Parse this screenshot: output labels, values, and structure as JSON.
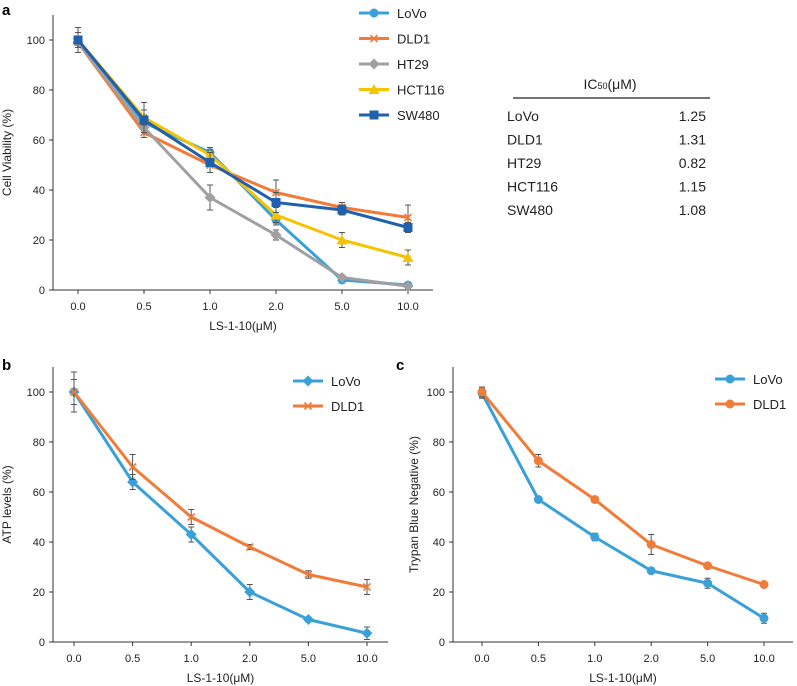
{
  "chart_data": [
    {
      "panel": "a",
      "type": "line",
      "categories": [
        "0.0",
        "0.5",
        "1.0",
        "2.0",
        "5.0",
        "10.0"
      ],
      "xlabel": "LS-1-10(μM)",
      "ylabel": "Cell Viability (%)",
      "ylim": [
        0,
        110
      ],
      "yticks": [
        0,
        20,
        40,
        60,
        80,
        100
      ],
      "grid": false,
      "legend_position": "top-right",
      "series": [
        {
          "name": "LoVo",
          "color": "#3aa0d8",
          "marker": "circle",
          "values": [
            100,
            67,
            55,
            28,
            4,
            2
          ],
          "errors": [
            3,
            3,
            2,
            2,
            1,
            1
          ]
        },
        {
          "name": "DLD1",
          "color": "#f07c3a",
          "marker": "x",
          "values": [
            99,
            63,
            50,
            39,
            33,
            29
          ],
          "errors": [
            2,
            2,
            3,
            5,
            2,
            5
          ]
        },
        {
          "name": "HT29",
          "color": "#a0a0a0",
          "marker": "diamond",
          "values": [
            99,
            65,
            37,
            22,
            5,
            1.5
          ],
          "errors": [
            2,
            2,
            5,
            2,
            1,
            1
          ]
        },
        {
          "name": "HCT116",
          "color": "#f5c400",
          "marker": "triangle",
          "values": [
            100,
            69,
            54,
            30,
            20,
            13
          ],
          "errors": [
            3,
            3,
            2,
            3,
            3,
            3
          ]
        },
        {
          "name": "SW480",
          "color": "#2060ad",
          "marker": "square",
          "values": [
            100,
            68,
            51,
            35,
            32,
            25
          ],
          "errors": [
            5,
            7,
            4,
            4,
            2,
            2
          ]
        }
      ],
      "ic50_table": {
        "header_main": "IC",
        "header_sub": "50",
        "header_unit": "(μM)",
        "rows": [
          {
            "name": "LoVo",
            "value": "1.25"
          },
          {
            "name": "DLD1",
            "value": "1.31"
          },
          {
            "name": "HT29",
            "value": "0.82"
          },
          {
            "name": "HCT116",
            "value": "1.15"
          },
          {
            "name": "SW480",
            "value": "1.08"
          }
        ]
      }
    },
    {
      "panel": "b",
      "type": "line",
      "categories": [
        "0.0",
        "0.5",
        "1.0",
        "2.0",
        "5.0",
        "10.0"
      ],
      "xlabel": "LS-1-10(μM)",
      "ylabel": "ATP levels (%)",
      "ylim": [
        0,
        110
      ],
      "yticks": [
        0,
        20,
        40,
        60,
        80,
        100
      ],
      "grid": false,
      "legend_position": "top-right",
      "series": [
        {
          "name": "LoVo",
          "color": "#3aa0d8",
          "marker": "diamond",
          "values": [
            100,
            64,
            43,
            20,
            9,
            3.5
          ],
          "errors": [
            8,
            3,
            3,
            3,
            1,
            2.5
          ]
        },
        {
          "name": "DLD1",
          "color": "#f07c3a",
          "marker": "x",
          "values": [
            100,
            70,
            50,
            38,
            27,
            22
          ],
          "errors": [
            5,
            5,
            3,
            1,
            1.5,
            3
          ]
        }
      ]
    },
    {
      "panel": "c",
      "type": "line",
      "categories": [
        "0.0",
        "0.5",
        "1.0",
        "2.0",
        "5.0",
        "10.0"
      ],
      "xlabel": "LS-1-10(μM)",
      "ylabel": "Trypan Blue Negative (%)",
      "ylim": [
        0,
        110
      ],
      "yticks": [
        0,
        20,
        40,
        60,
        80,
        100
      ],
      "grid": false,
      "legend_position": "top-right",
      "series": [
        {
          "name": "LoVo",
          "color": "#3aa0d8",
          "marker": "circle",
          "values": [
            99.5,
            57,
            42,
            28.5,
            23.5,
            9.5
          ],
          "errors": [
            2,
            1,
            1.5,
            1,
            2,
            2
          ]
        },
        {
          "name": "DLD1",
          "color": "#f07c3a",
          "marker": "circle",
          "values": [
            100,
            72.5,
            57,
            39,
            30.5,
            23
          ],
          "errors": [
            2,
            2.5,
            1,
            4,
            1,
            1
          ]
        }
      ]
    }
  ]
}
